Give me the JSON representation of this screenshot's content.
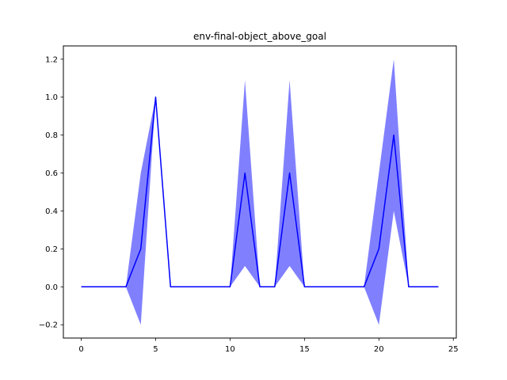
{
  "chart_data": {
    "type": "line",
    "title": "env-final-object_above_goal",
    "xlabel": "",
    "ylabel": "",
    "xlim": [
      -1.2,
      25.2
    ],
    "ylim": [
      -0.27,
      1.27
    ],
    "xticks": [
      0,
      5,
      10,
      15,
      20,
      25
    ],
    "yticks": [
      -0.2,
      0.0,
      0.2,
      0.4,
      0.6,
      0.8,
      1.0,
      1.2
    ],
    "grid": false,
    "x": [
      0,
      1,
      2,
      3,
      4,
      5,
      6,
      7,
      8,
      9,
      10,
      11,
      12,
      13,
      14,
      15,
      16,
      17,
      18,
      19,
      20,
      21,
      22,
      23,
      24
    ],
    "series": [
      {
        "name": "",
        "color": "#0000ff",
        "values": [
          0,
          0,
          0,
          0,
          0.2,
          1.0,
          0,
          0,
          0,
          0,
          0,
          0.6,
          0,
          0,
          0.6,
          0,
          0,
          0,
          0,
          0,
          0.2,
          0.8,
          0,
          0,
          0
        ],
        "band_lower": [
          0,
          0,
          0,
          0,
          -0.2,
          1.0,
          0,
          0,
          0,
          0,
          0,
          0.11,
          0,
          0,
          0.11,
          0,
          0,
          0,
          0,
          0,
          -0.2,
          0.4,
          0,
          0,
          0
        ],
        "band_upper": [
          0,
          0,
          0,
          0,
          0.6,
          1.0,
          0,
          0,
          0,
          0,
          0,
          1.09,
          0,
          0,
          1.09,
          0,
          0,
          0,
          0,
          0,
          0.6,
          1.2,
          0,
          0,
          0
        ],
        "band_color": "#8080ff"
      }
    ]
  }
}
